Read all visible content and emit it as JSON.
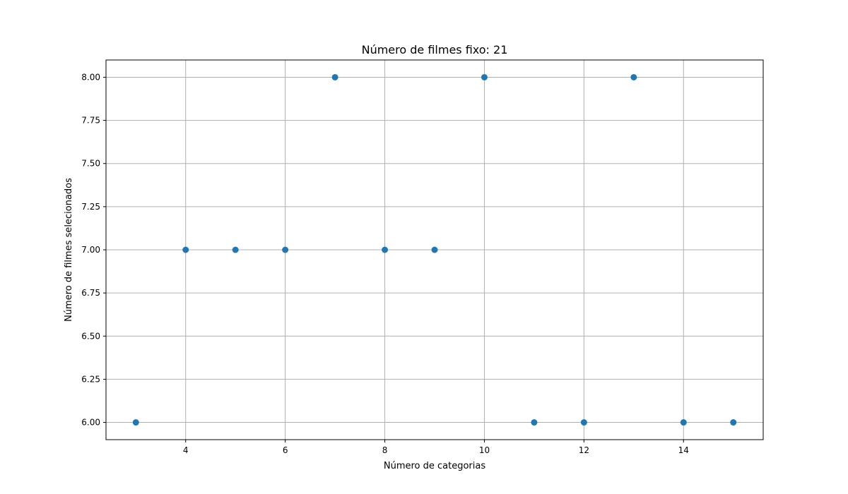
{
  "chart_data": {
    "type": "scatter",
    "title": "Número de filmes fixo: 21",
    "xlabel": "Número de categorias",
    "ylabel": "Número de filmes selecionados",
    "x": [
      3,
      4,
      5,
      6,
      7,
      8,
      9,
      10,
      11,
      12,
      13,
      14,
      15
    ],
    "y": [
      6,
      7,
      7,
      7,
      8,
      7,
      7,
      8,
      6,
      6,
      8,
      6,
      6
    ],
    "xlim": [
      2.4,
      15.6
    ],
    "ylim": [
      5.9,
      8.1
    ],
    "xticks": [
      4,
      6,
      8,
      10,
      12,
      14
    ],
    "yticks": [
      6.0,
      6.25,
      6.5,
      6.75,
      7.0,
      7.25,
      7.5,
      7.75,
      8.0
    ],
    "xtick_labels": [
      "4",
      "6",
      "8",
      "10",
      "12",
      "14"
    ],
    "ytick_labels": [
      "6.00",
      "6.25",
      "6.50",
      "6.75",
      "7.00",
      "7.25",
      "7.50",
      "7.75",
      "8.00"
    ],
    "grid": true,
    "marker_color": "#1f77b4",
    "grid_color": "#b0b0b0"
  }
}
